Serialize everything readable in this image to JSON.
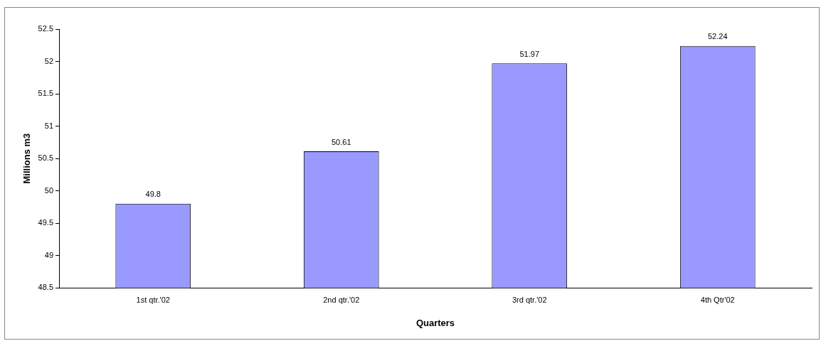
{
  "chart_data": {
    "type": "bar",
    "xlabel": "Quarters",
    "ylabel": "Millions m3",
    "categories": [
      "1st qtr.'02",
      "2nd qtr.'02",
      "3rd qtr.'02",
      "4th Qtr'02"
    ],
    "values": [
      49.8,
      50.61,
      51.97,
      52.24
    ],
    "color": "#9999ff",
    "ylim": [
      48.5,
      52.5
    ],
    "yticks": [
      48.5,
      49,
      49.5,
      50,
      50.5,
      51,
      51.5,
      52,
      52.5
    ],
    "grid": false,
    "legend": false,
    "data_labels": true
  }
}
